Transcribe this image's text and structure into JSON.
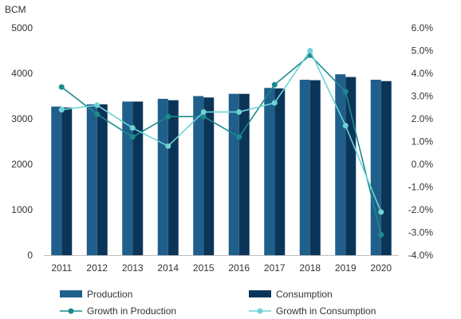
{
  "chart_data": {
    "type": "bar",
    "unit_label": "BCM",
    "categories": [
      "2011",
      "2012",
      "2013",
      "2014",
      "2015",
      "2016",
      "2017",
      "2018",
      "2019",
      "2020"
    ],
    "y_left": {
      "min": 0,
      "max": 5000,
      "ticks": [
        0,
        1000,
        2000,
        3000,
        4000,
        5000
      ],
      "tick_labels": [
        "0",
        "1000",
        "2000",
        "3000",
        "4000",
        "5000"
      ]
    },
    "y_right": {
      "min": -4.0,
      "max": 6.0,
      "ticks": [
        6,
        5,
        4,
        3,
        2,
        1,
        0,
        -1,
        -2,
        -3,
        -4
      ],
      "tick_labels": [
        "6.0%",
        "5.0%",
        "4.0%",
        "3.0%",
        "2.0%",
        "1.0%",
        "0.0%",
        "-1.0%",
        "-2.0%",
        "-3.0%",
        "-4.0%"
      ]
    },
    "series": [
      {
        "name": "Production",
        "kind": "bar",
        "axis": "left",
        "color": "#1f5f8b",
        "values": [
          3270,
          3320,
          3380,
          3440,
          3500,
          3550,
          3680,
          3860,
          3980,
          3860
        ]
      },
      {
        "name": "Consumption",
        "kind": "bar",
        "axis": "left",
        "color": "#0b3558",
        "values": [
          3250,
          3320,
          3380,
          3410,
          3470,
          3550,
          3670,
          3850,
          3920,
          3830
        ]
      },
      {
        "name": "Growth in Production",
        "kind": "line",
        "axis": "right",
        "color": "#1b8a8c",
        "values": [
          3.4,
          2.2,
          1.2,
          2.1,
          2.1,
          1.2,
          3.5,
          4.8,
          3.2,
          -3.1
        ]
      },
      {
        "name": "Growth in Consumption",
        "kind": "line",
        "axis": "right",
        "color": "#6fd3d6",
        "values": [
          2.4,
          2.6,
          1.6,
          0.8,
          2.3,
          2.3,
          2.7,
          5.0,
          1.7,
          -2.1
        ]
      }
    ],
    "grid": false,
    "legend_position": "bottom"
  }
}
